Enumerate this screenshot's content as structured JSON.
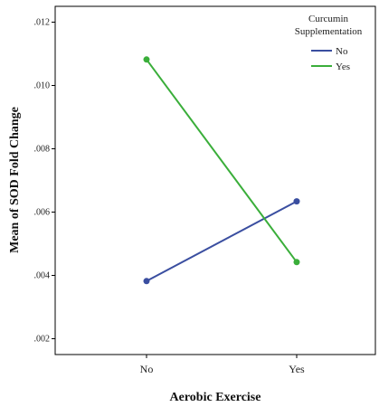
{
  "chart_data": {
    "type": "line",
    "categories": [
      "No",
      "Yes"
    ],
    "xlabel": "Aerobic Exercise",
    "ylabel": "Mean of SOD Fold Change",
    "ylim": [
      0.0015,
      0.0125
    ],
    "yticks": [
      ".002",
      ".004",
      ".006",
      ".008",
      ".010",
      ".012"
    ],
    "ytick_values": [
      0.002,
      0.004,
      0.006,
      0.008,
      0.01,
      0.012
    ],
    "grid": false,
    "legend": {
      "title_lines": [
        "Curcumin",
        "Supplementation"
      ],
      "placement": "top-right"
    },
    "series": [
      {
        "name": "No",
        "color": "#3a4ea0",
        "values": [
          0.00382,
          0.00634
        ]
      },
      {
        "name": "Yes",
        "color": "#3aae3a",
        "values": [
          0.01082,
          0.00442
        ]
      }
    ]
  }
}
